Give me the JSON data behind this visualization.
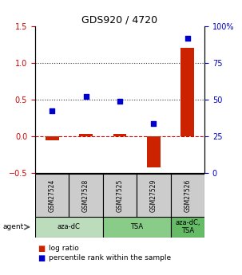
{
  "title": "GDS920 / 4720",
  "samples": [
    "GSM27524",
    "GSM27528",
    "GSM27525",
    "GSM27529",
    "GSM27526"
  ],
  "log_ratio": [
    -0.05,
    0.04,
    0.04,
    -0.42,
    1.2
  ],
  "percentile_rank_left": [
    0.35,
    0.54,
    0.48,
    0.18,
    1.34
  ],
  "ylim_left": [
    -0.5,
    1.5
  ],
  "ylim_right": [
    0,
    100
  ],
  "yticks_left": [
    -0.5,
    0.0,
    0.5,
    1.0,
    1.5
  ],
  "yticks_right": [
    0,
    25,
    50,
    75,
    100
  ],
  "ytick_labels_right": [
    "0",
    "25",
    "50",
    "75",
    "100%"
  ],
  "hlines": [
    0.0,
    0.5,
    1.0
  ],
  "hline_styles": [
    "dashed",
    "dotted",
    "dotted"
  ],
  "hline_colors": [
    "#cc0000",
    "#333333",
    "#333333"
  ],
  "bar_color": "#cc2200",
  "dot_color": "#0000cc",
  "agent_groups": [
    {
      "label": "aza-dC",
      "start": 0,
      "end": 1,
      "color": "#bbddbb"
    },
    {
      "label": "TSA",
      "start": 2,
      "end": 3,
      "color": "#88cc88"
    },
    {
      "label": "aza-dC,\nTSA",
      "start": 4,
      "end": 4,
      "color": "#66bb66"
    }
  ],
  "left_ylabel_color": "#cc0000",
  "right_ylabel_color": "#0000cc",
  "sample_box_color": "#cccccc",
  "title_fontsize": 9,
  "tick_fontsize": 7,
  "bar_width": 0.4
}
